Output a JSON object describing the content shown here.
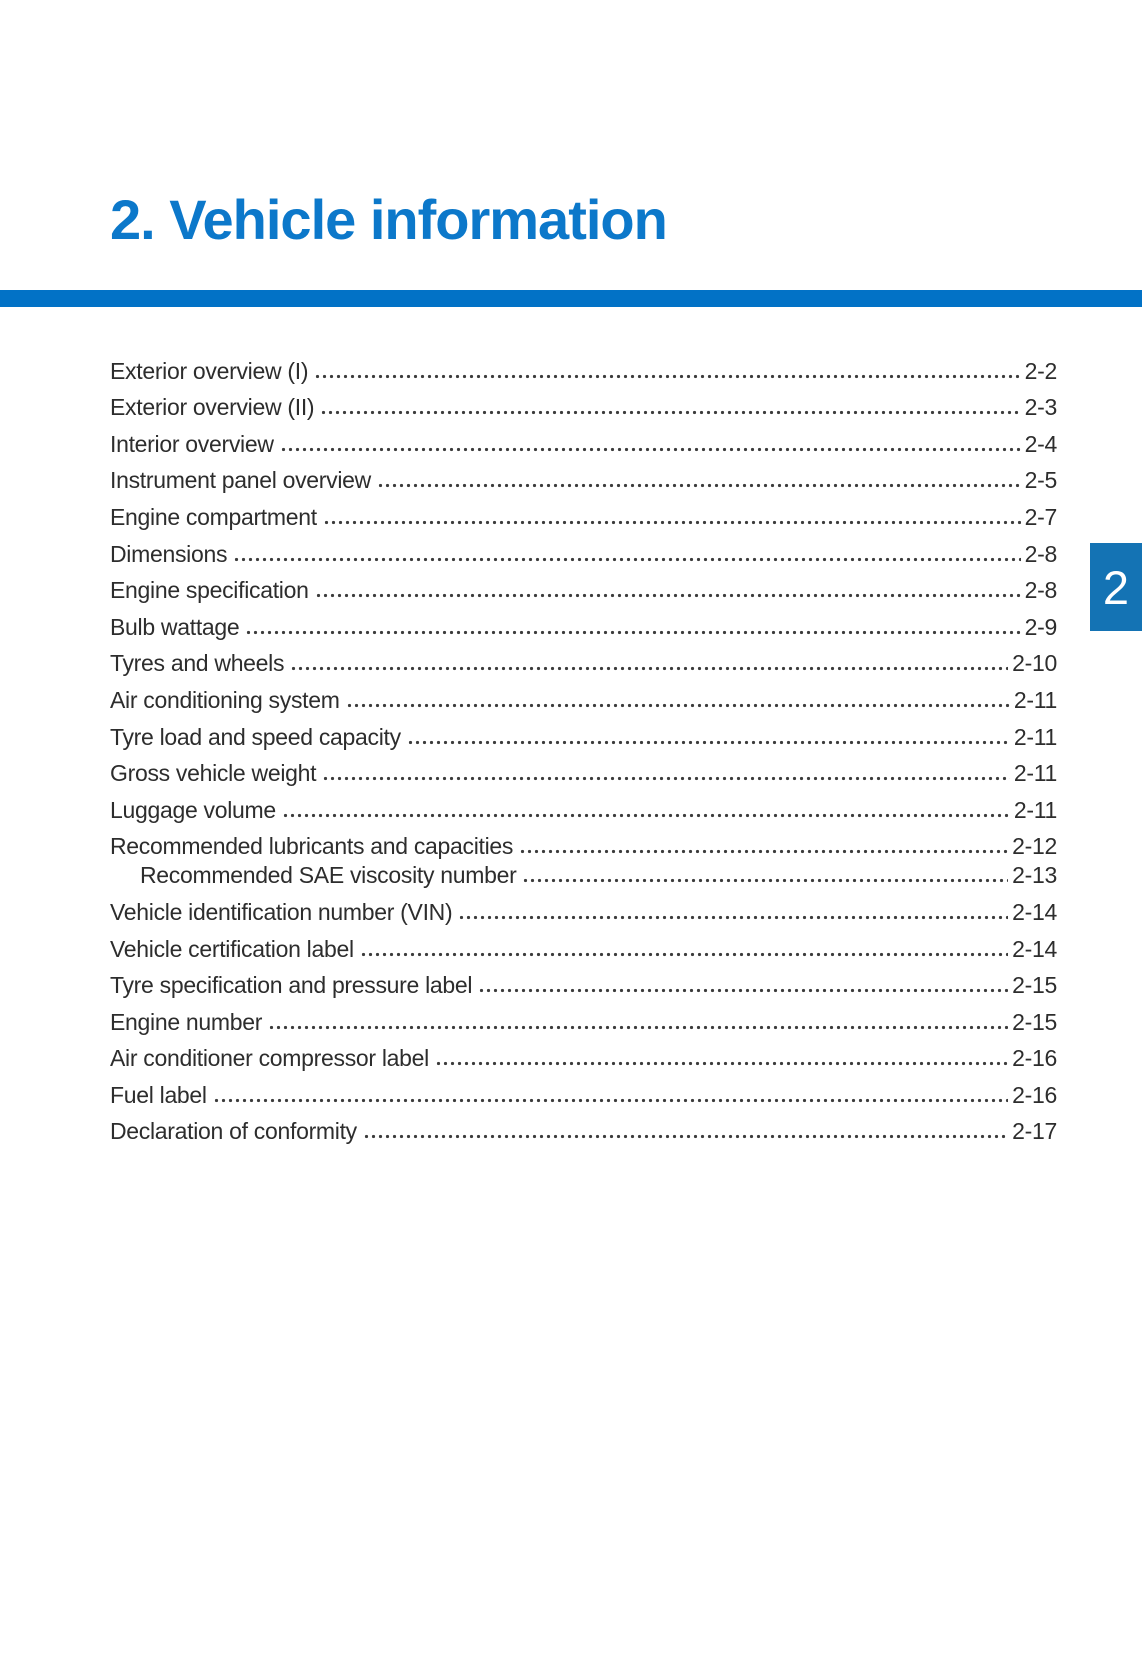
{
  "title": "2. Vehicle information",
  "chapter_tab": "2",
  "colors": {
    "title_blue": "#0c78ca",
    "bar_blue": "#0272c6",
    "tab_blue": "#1473b4",
    "text": "#2d2d2d",
    "dot": "#3c3c3c",
    "tab_text": "#ffffff"
  },
  "toc": {
    "entries": [
      {
        "label": "Exterior overview (I)",
        "page": "2-2",
        "indent": false
      },
      {
        "label": "Exterior overview (II)",
        "page": "2-3",
        "indent": false
      },
      {
        "label": "Interior overview",
        "page": "2-4",
        "indent": false
      },
      {
        "label": "Instrument panel overview",
        "page": "2-5",
        "indent": false
      },
      {
        "label": "Engine compartment",
        "page": "2-7",
        "indent": false
      },
      {
        "label": "Dimensions",
        "page": "2-8",
        "indent": false
      },
      {
        "label": "Engine specification",
        "page": "2-8",
        "indent": false
      },
      {
        "label": "Bulb wattage",
        "page": "2-9",
        "indent": false
      },
      {
        "label": "Tyres and wheels",
        "page": "2-10",
        "indent": false
      },
      {
        "label": "Air conditioning system",
        "page": "2-11",
        "indent": false
      },
      {
        "label": "Tyre load and speed capacity",
        "page": "2-11",
        "indent": false
      },
      {
        "label": "Gross vehicle weight",
        "page": "2-11",
        "indent": false
      },
      {
        "label": "Luggage volume",
        "page": "2-11",
        "indent": false
      },
      {
        "label": "Recommended lubricants and capacities",
        "page": "2-12",
        "indent": false
      },
      {
        "label": "Recommended SAE viscosity number",
        "page": "2-13",
        "indent": true
      },
      {
        "label": "Vehicle identification number (VIN)",
        "page": "2-14",
        "indent": false
      },
      {
        "label": "Vehicle certification label",
        "page": "2-14",
        "indent": false
      },
      {
        "label": "Tyre specification and pressure label",
        "page": "2-15",
        "indent": false
      },
      {
        "label": "Engine number",
        "page": "2-15",
        "indent": false
      },
      {
        "label": "Air conditioner compressor label",
        "page": "2-16",
        "indent": false
      },
      {
        "label": "Fuel label",
        "page": "2-16",
        "indent": false
      },
      {
        "label": "Declaration of conformity",
        "page": "2-17",
        "indent": false
      }
    ]
  }
}
